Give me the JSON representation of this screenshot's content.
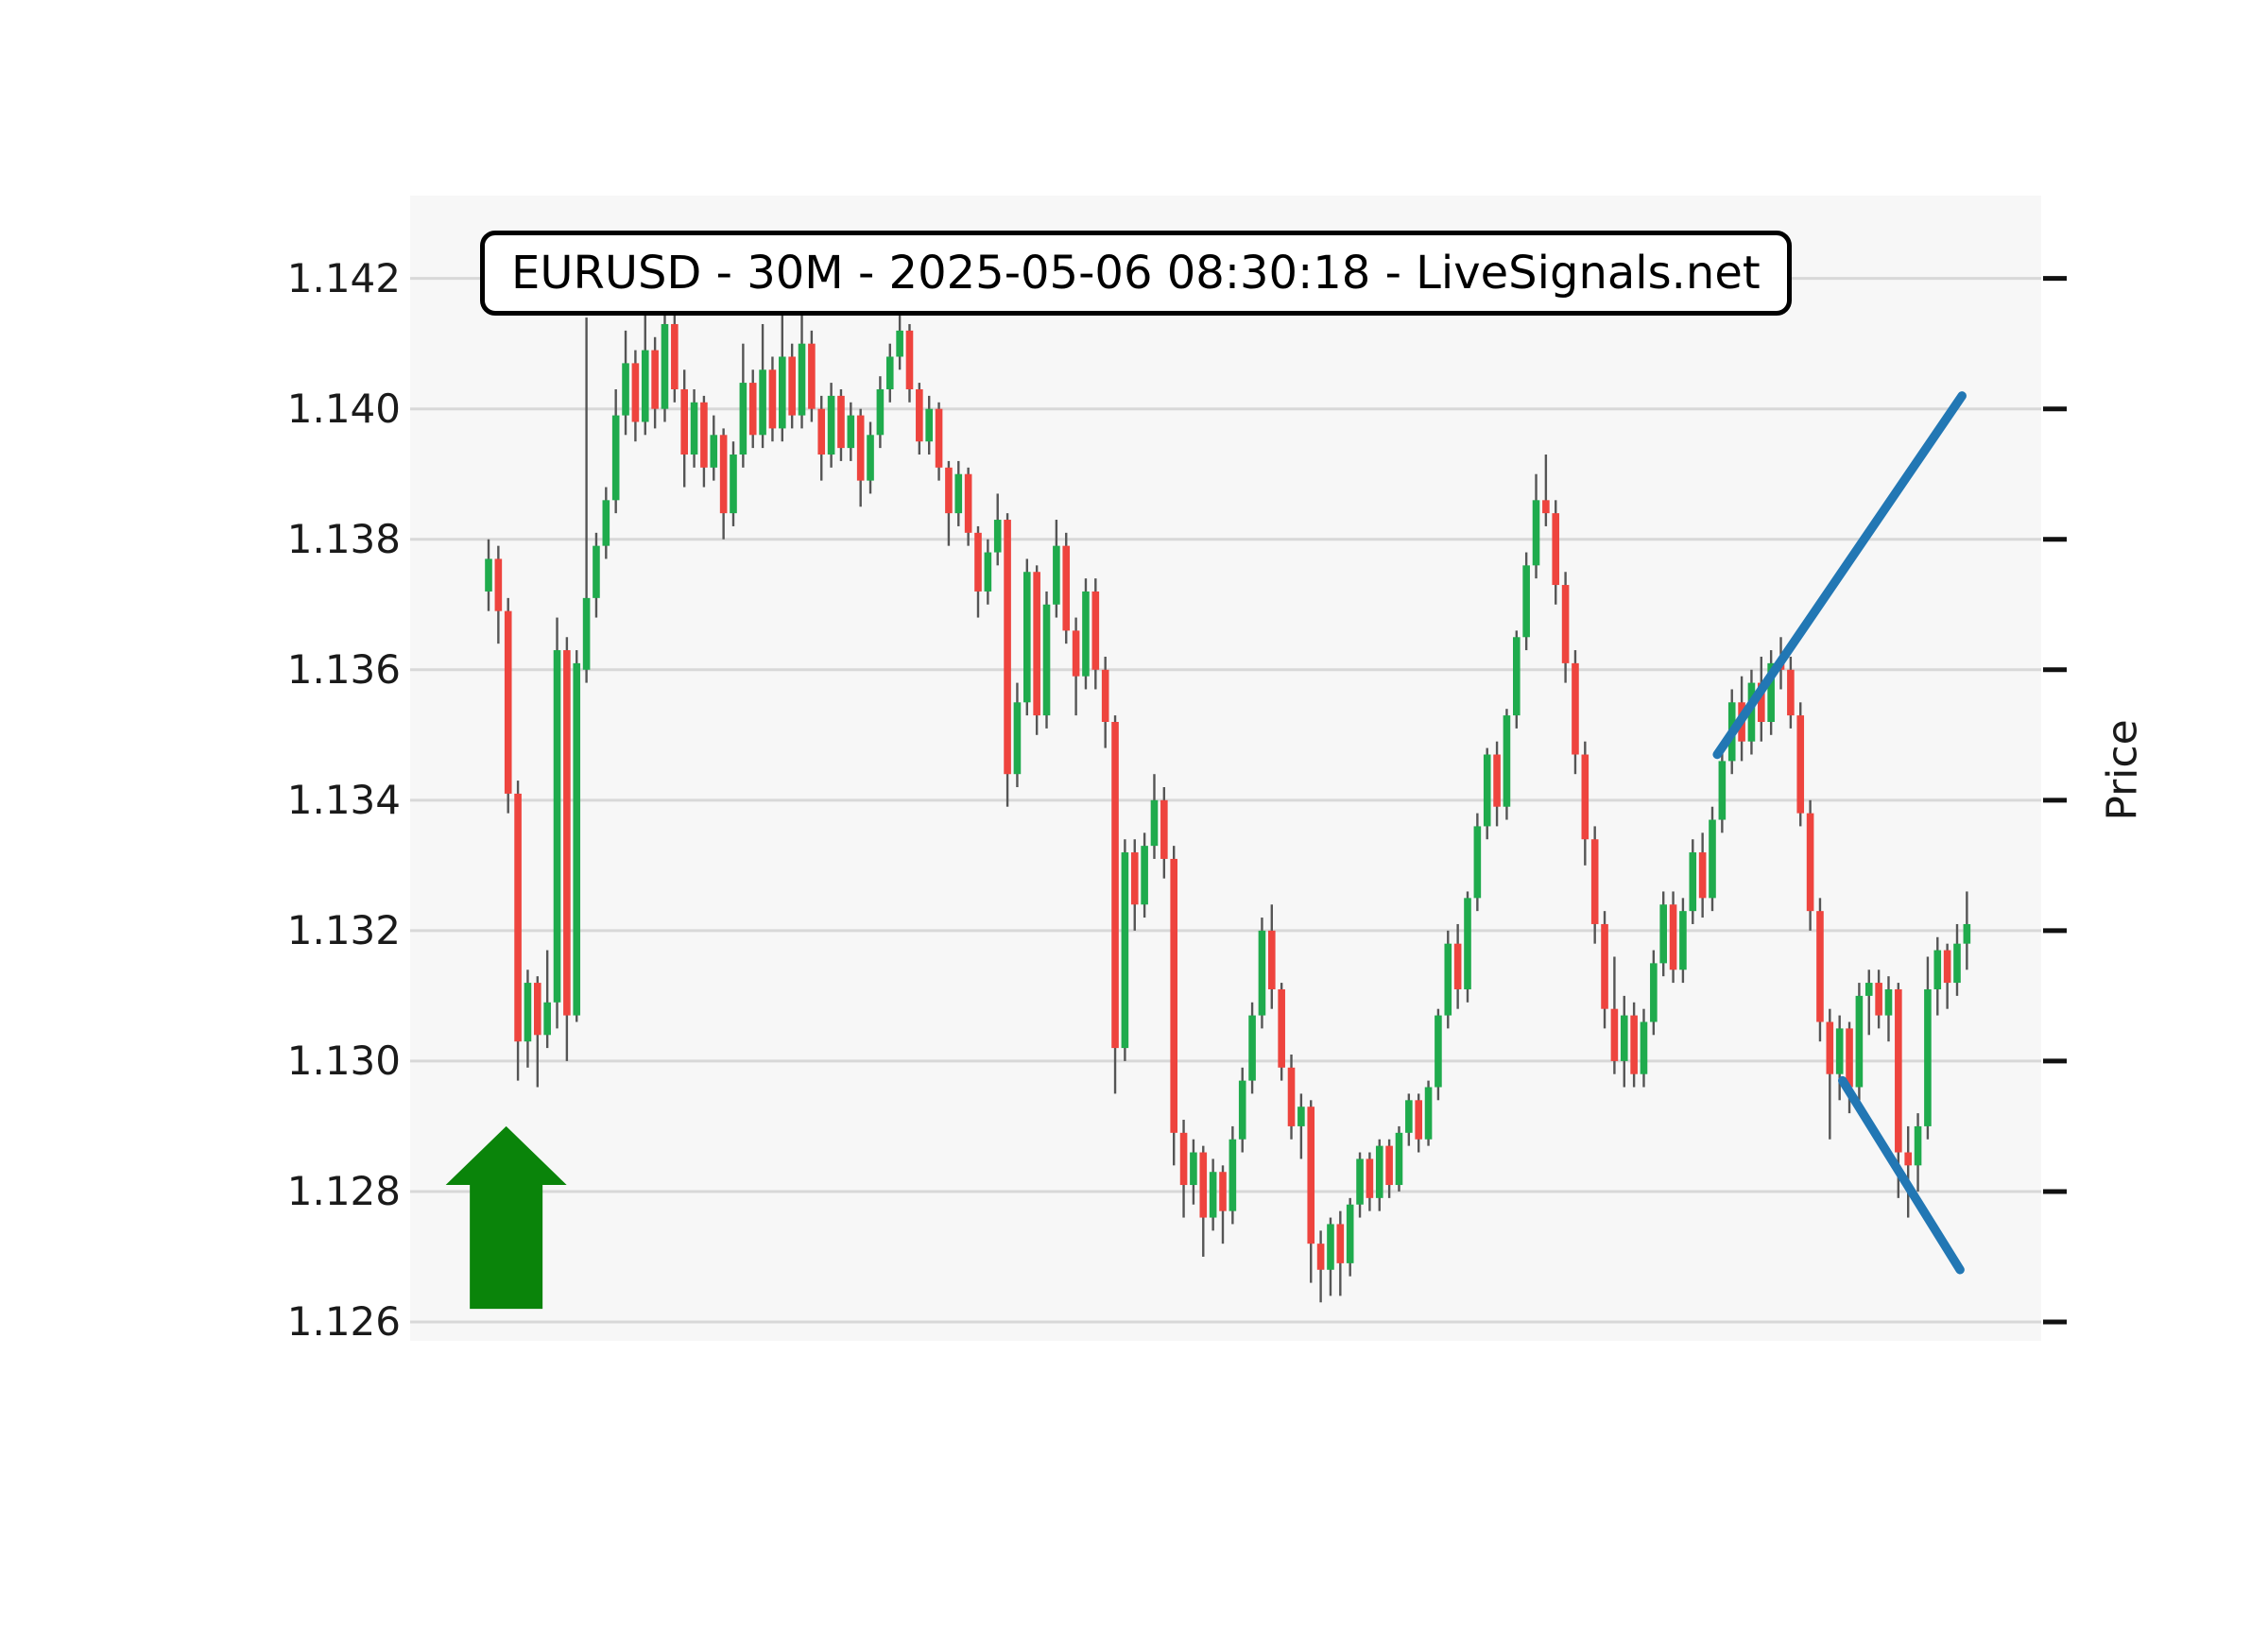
{
  "title": {
    "text": "EURUSD - 30M - 2025-05-06 08:30:18 - LiveSignals.net"
  },
  "axes": {
    "y_label_right": "Price",
    "y_tick_labels": [
      "1.142",
      "1.140",
      "1.138",
      "1.136",
      "1.134",
      "1.132",
      "1.130",
      "1.128",
      "1.126"
    ]
  },
  "chart_data": {
    "type": "candlestick",
    "title": "EURUSD - 30M - 2025-05-06 08:30:18 - LiveSignals.net",
    "ylabel_right": "Price",
    "xlabel": "",
    "x_axis_labels_visible": false,
    "grid": "horizontal",
    "ylim": [
      1.12571,
      1.14327
    ],
    "y_gridline_prices": [
      1.142,
      1.14,
      1.138,
      1.136,
      1.134,
      1.132,
      1.13,
      1.128,
      1.126
    ],
    "candles_ohlc": [
      [
        1.1372,
        1.138,
        1.1369,
        1.1377
      ],
      [
        1.1377,
        1.1379,
        1.1364,
        1.1369
      ],
      [
        1.1369,
        1.1371,
        1.1338,
        1.1341
      ],
      [
        1.1341,
        1.1343,
        1.1297,
        1.1303
      ],
      [
        1.1303,
        1.1314,
        1.1299,
        1.1312
      ],
      [
        1.1312,
        1.1313,
        1.1296,
        1.1304
      ],
      [
        1.1304,
        1.1317,
        1.1302,
        1.1309
      ],
      [
        1.1309,
        1.1368,
        1.1305,
        1.1363
      ],
      [
        1.1363,
        1.1365,
        1.13,
        1.1307
      ],
      [
        1.1307,
        1.1363,
        1.1306,
        1.1361
      ],
      [
        1.136,
        1.1414,
        1.1358,
        1.1371
      ],
      [
        1.1371,
        1.1381,
        1.1368,
        1.1379
      ],
      [
        1.1379,
        1.1388,
        1.1377,
        1.1386
      ],
      [
        1.1386,
        1.1403,
        1.1384,
        1.1399
      ],
      [
        1.1399,
        1.1412,
        1.1396,
        1.1407
      ],
      [
        1.1407,
        1.1409,
        1.1395,
        1.1398
      ],
      [
        1.1398,
        1.1415,
        1.1396,
        1.1409
      ],
      [
        1.1409,
        1.1411,
        1.1397,
        1.14
      ],
      [
        1.14,
        1.142,
        1.1398,
        1.1413
      ],
      [
        1.1413,
        1.1415,
        1.1401,
        1.1403
      ],
      [
        1.1403,
        1.1406,
        1.1388,
        1.1393
      ],
      [
        1.1393,
        1.1403,
        1.1391,
        1.1401
      ],
      [
        1.1401,
        1.1402,
        1.1388,
        1.1391
      ],
      [
        1.1391,
        1.1399,
        1.1389,
        1.1396
      ],
      [
        1.1396,
        1.1397,
        1.138,
        1.1384
      ],
      [
        1.1384,
        1.1395,
        1.1382,
        1.1393
      ],
      [
        1.1393,
        1.141,
        1.1391,
        1.1404
      ],
      [
        1.1404,
        1.1406,
        1.1394,
        1.1396
      ],
      [
        1.1396,
        1.1413,
        1.1394,
        1.1406
      ],
      [
        1.1406,
        1.1408,
        1.1395,
        1.1397
      ],
      [
        1.1397,
        1.1416,
        1.1395,
        1.1408
      ],
      [
        1.1408,
        1.141,
        1.1397,
        1.1399
      ],
      [
        1.1399,
        1.1418,
        1.1397,
        1.141
      ],
      [
        1.141,
        1.1412,
        1.1398,
        1.14
      ],
      [
        1.14,
        1.1402,
        1.1389,
        1.1393
      ],
      [
        1.1393,
        1.1404,
        1.1391,
        1.1402
      ],
      [
        1.1402,
        1.1403,
        1.1392,
        1.1394
      ],
      [
        1.1394,
        1.1401,
        1.1392,
        1.1399
      ],
      [
        1.1399,
        1.14,
        1.1385,
        1.1389
      ],
      [
        1.1389,
        1.1398,
        1.1387,
        1.1396
      ],
      [
        1.1396,
        1.1405,
        1.1394,
        1.1403
      ],
      [
        1.1403,
        1.141,
        1.1401,
        1.1408
      ],
      [
        1.1408,
        1.1416,
        1.1406,
        1.1412
      ],
      [
        1.1412,
        1.1413,
        1.1401,
        1.1403
      ],
      [
        1.1403,
        1.1404,
        1.1393,
        1.1395
      ],
      [
        1.1395,
        1.1402,
        1.1393,
        1.14
      ],
      [
        1.14,
        1.1401,
        1.1389,
        1.1391
      ],
      [
        1.1391,
        1.1392,
        1.1379,
        1.1384
      ],
      [
        1.1384,
        1.1392,
        1.1382,
        1.139
      ],
      [
        1.139,
        1.1391,
        1.1379,
        1.1381
      ],
      [
        1.1381,
        1.1382,
        1.1368,
        1.1372
      ],
      [
        1.1372,
        1.138,
        1.137,
        1.1378
      ],
      [
        1.1378,
        1.1387,
        1.1376,
        1.1383
      ],
      [
        1.1383,
        1.1384,
        1.1339,
        1.1344
      ],
      [
        1.1344,
        1.1358,
        1.1342,
        1.1355
      ],
      [
        1.1355,
        1.1377,
        1.1353,
        1.1375
      ],
      [
        1.1375,
        1.1376,
        1.135,
        1.1353
      ],
      [
        1.1353,
        1.1372,
        1.1351,
        1.137
      ],
      [
        1.137,
        1.1383,
        1.1368,
        1.1379
      ],
      [
        1.1379,
        1.1381,
        1.1364,
        1.1366
      ],
      [
        1.1366,
        1.1368,
        1.1353,
        1.1359
      ],
      [
        1.1359,
        1.1374,
        1.1357,
        1.1372
      ],
      [
        1.1372,
        1.1374,
        1.1357,
        1.136
      ],
      [
        1.136,
        1.1362,
        1.1348,
        1.1352
      ],
      [
        1.1352,
        1.1353,
        1.1295,
        1.1302
      ],
      [
        1.1302,
        1.1334,
        1.13,
        1.1332
      ],
      [
        1.1332,
        1.1334,
        1.132,
        1.1324
      ],
      [
        1.1324,
        1.1335,
        1.1322,
        1.1333
      ],
      [
        1.1333,
        1.1344,
        1.1331,
        1.134
      ],
      [
        1.134,
        1.1342,
        1.1328,
        1.1331
      ],
      [
        1.1331,
        1.1333,
        1.1284,
        1.1289
      ],
      [
        1.1289,
        1.1291,
        1.1276,
        1.1281
      ],
      [
        1.1281,
        1.1288,
        1.1278,
        1.1286
      ],
      [
        1.1286,
        1.1287,
        1.127,
        1.1276
      ],
      [
        1.1276,
        1.1285,
        1.1274,
        1.1283
      ],
      [
        1.1283,
        1.1284,
        1.1272,
        1.1277
      ],
      [
        1.1277,
        1.129,
        1.1275,
        1.1288
      ],
      [
        1.1288,
        1.1299,
        1.1286,
        1.1297
      ],
      [
        1.1297,
        1.1309,
        1.1295,
        1.1307
      ],
      [
        1.1307,
        1.1322,
        1.1305,
        1.132
      ],
      [
        1.132,
        1.1324,
        1.1308,
        1.1311
      ],
      [
        1.1311,
        1.1312,
        1.1297,
        1.1299
      ],
      [
        1.1299,
        1.1301,
        1.1288,
        1.129
      ],
      [
        1.129,
        1.1295,
        1.1285,
        1.1293
      ],
      [
        1.1293,
        1.1294,
        1.1266,
        1.1272
      ],
      [
        1.1272,
        1.1274,
        1.1263,
        1.1268
      ],
      [
        1.1268,
        1.1276,
        1.1264,
        1.1275
      ],
      [
        1.1275,
        1.1277,
        1.1264,
        1.1269
      ],
      [
        1.1269,
        1.1279,
        1.1267,
        1.1278
      ],
      [
        1.1278,
        1.1286,
        1.1276,
        1.1285
      ],
      [
        1.1285,
        1.1286,
        1.1277,
        1.1279
      ],
      [
        1.1279,
        1.1288,
        1.1277,
        1.1287
      ],
      [
        1.1287,
        1.1288,
        1.1279,
        1.1281
      ],
      [
        1.1281,
        1.129,
        1.128,
        1.1289
      ],
      [
        1.1289,
        1.1295,
        1.1287,
        1.1294
      ],
      [
        1.1294,
        1.1295,
        1.1286,
        1.1288
      ],
      [
        1.1288,
        1.1297,
        1.1287,
        1.1296
      ],
      [
        1.1296,
        1.1308,
        1.1294,
        1.1307
      ],
      [
        1.1307,
        1.132,
        1.1305,
        1.1318
      ],
      [
        1.1318,
        1.1321,
        1.1308,
        1.1311
      ],
      [
        1.1311,
        1.1326,
        1.1309,
        1.1325
      ],
      [
        1.1325,
        1.1338,
        1.1323,
        1.1336
      ],
      [
        1.1336,
        1.1348,
        1.1334,
        1.1347
      ],
      [
        1.1347,
        1.1349,
        1.1336,
        1.1339
      ],
      [
        1.1339,
        1.1354,
        1.1337,
        1.1353
      ],
      [
        1.1353,
        1.1366,
        1.1351,
        1.1365
      ],
      [
        1.1365,
        1.1378,
        1.1363,
        1.1376
      ],
      [
        1.1376,
        1.139,
        1.1374,
        1.1386
      ],
      [
        1.1386,
        1.1393,
        1.1382,
        1.1384
      ],
      [
        1.1384,
        1.1386,
        1.137,
        1.1373
      ],
      [
        1.1373,
        1.1375,
        1.1358,
        1.1361
      ],
      [
        1.1361,
        1.1363,
        1.1344,
        1.1347
      ],
      [
        1.1347,
        1.1349,
        1.133,
        1.1334
      ],
      [
        1.1334,
        1.1336,
        1.1318,
        1.1321
      ],
      [
        1.1321,
        1.1323,
        1.1305,
        1.1308
      ],
      [
        1.1308,
        1.1316,
        1.1298,
        1.13
      ],
      [
        1.13,
        1.131,
        1.1296,
        1.1307
      ],
      [
        1.1307,
        1.1309,
        1.1296,
        1.1298
      ],
      [
        1.1298,
        1.1308,
        1.1296,
        1.1306
      ],
      [
        1.1306,
        1.1317,
        1.1304,
        1.1315
      ],
      [
        1.1315,
        1.1326,
        1.1313,
        1.1324
      ],
      [
        1.1324,
        1.1326,
        1.1312,
        1.1314
      ],
      [
        1.1314,
        1.1325,
        1.1312,
        1.1323
      ],
      [
        1.1323,
        1.1334,
        1.1321,
        1.1332
      ],
      [
        1.1332,
        1.1335,
        1.1322,
        1.1325
      ],
      [
        1.1325,
        1.1339,
        1.1323,
        1.1337
      ],
      [
        1.1337,
        1.1348,
        1.1335,
        1.1346
      ],
      [
        1.1346,
        1.1357,
        1.1344,
        1.1355
      ],
      [
        1.1355,
        1.1359,
        1.1346,
        1.1349
      ],
      [
        1.1349,
        1.136,
        1.1347,
        1.1358
      ],
      [
        1.1358,
        1.1362,
        1.1349,
        1.1352
      ],
      [
        1.1352,
        1.1363,
        1.135,
        1.1361
      ],
      [
        1.1361,
        1.1365,
        1.1357,
        1.136
      ],
      [
        1.136,
        1.1362,
        1.1351,
        1.1353
      ],
      [
        1.1353,
        1.1355,
        1.1336,
        1.1338
      ],
      [
        1.1338,
        1.134,
        1.132,
        1.1323
      ],
      [
        1.1323,
        1.1325,
        1.1303,
        1.1306
      ],
      [
        1.1306,
        1.1308,
        1.1288,
        1.1298
      ],
      [
        1.1298,
        1.1307,
        1.1294,
        1.1305
      ],
      [
        1.1305,
        1.1306,
        1.1292,
        1.1296
      ],
      [
        1.1296,
        1.1312,
        1.1294,
        1.131
      ],
      [
        1.131,
        1.1314,
        1.1304,
        1.1312
      ],
      [
        1.1312,
        1.1314,
        1.1305,
        1.1307
      ],
      [
        1.1307,
        1.1313,
        1.1303,
        1.1311
      ],
      [
        1.1311,
        1.1312,
        1.1279,
        1.1286
      ],
      [
        1.1286,
        1.129,
        1.1276,
        1.1284
      ],
      [
        1.1284,
        1.1292,
        1.128,
        1.129
      ],
      [
        1.129,
        1.1316,
        1.1288,
        1.1311
      ],
      [
        1.1311,
        1.1319,
        1.1307,
        1.1317
      ],
      [
        1.1317,
        1.1318,
        1.1308,
        1.1312
      ],
      [
        1.1312,
        1.1321,
        1.131,
        1.1318
      ],
      [
        1.1318,
        1.1326,
        1.1314,
        1.1321
      ]
    ],
    "trend_lines": [
      {
        "name": "rising-trend-line",
        "x1_index": 125.5,
        "price1": 1.1347,
        "x2_index": 150.5,
        "price2": 1.1402
      },
      {
        "name": "falling-trend-line",
        "x1_index": 138.3,
        "price1": 1.1297,
        "x2_index": 150.3,
        "price2": 1.1268
      }
    ],
    "buy_arrow": {
      "x_index": 1.8,
      "tip_price": 1.129,
      "head_base_price": 1.1281,
      "tail_price": 1.1262
    },
    "colors": {
      "up_candle": "#1fab4d",
      "down_candle": "#ee443e",
      "wick": "#555555",
      "trend_line": "#2277b4",
      "arrow": "#0a840a",
      "grid": "#d8d8d8",
      "plot_background": "#f7f7f7",
      "figure_background": "#ffffff",
      "text": "#1a1a1a",
      "tick_mark": "#111111"
    },
    "legend": null
  }
}
